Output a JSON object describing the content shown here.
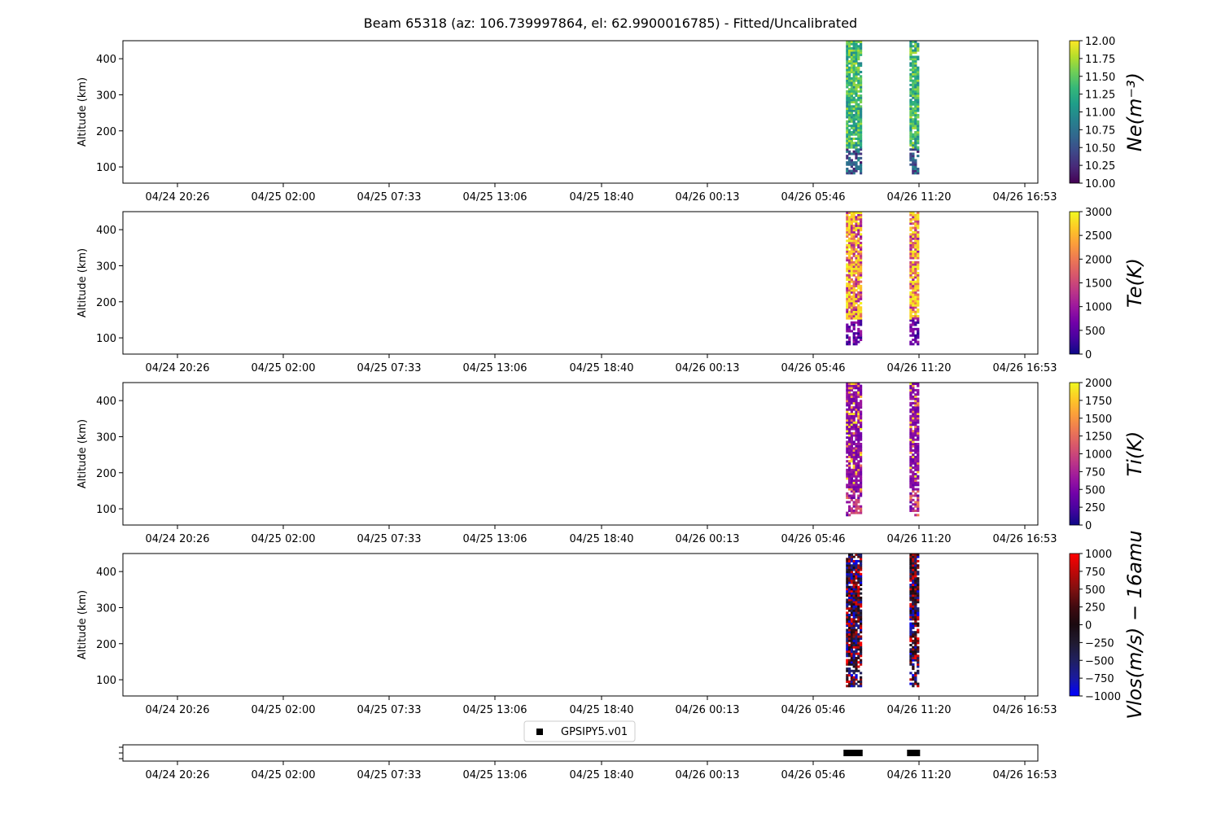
{
  "title": "Beam 65318 (az: 106.739997864, el: 62.9900016785) - Fitted/Uncalibrated",
  "x_tick_labels": [
    "04/24 20:26",
    "04/25 02:00",
    "04/25 07:33",
    "04/25 13:06",
    "04/25 18:40",
    "04/26 00:13",
    "04/26 05:46",
    "04/26 11:20",
    "04/26 16:53"
  ],
  "chart_data": [
    {
      "type": "heatmap",
      "ylabel": "Altitude (km)",
      "ylim": [
        55,
        450
      ],
      "y_ticks": [
        100,
        200,
        300,
        400
      ],
      "colorbar": {
        "label": "Ne(m⁻³)",
        "colormap": "viridis",
        "range": [
          10.0,
          12.0
        ],
        "ticks": [
          "10.00",
          "10.25",
          "10.50",
          "10.75",
          "11.00",
          "11.25",
          "11.50",
          "11.75",
          "12.00"
        ]
      },
      "data_blocks": [
        {
          "start": "04/26 07:30",
          "end": "04/26 08:20",
          "altitude_range": [
            80,
            450
          ]
        },
        {
          "start": "04/26 10:50",
          "end": "04/26 11:20",
          "altitude_range": [
            80,
            450
          ]
        }
      ]
    },
    {
      "type": "heatmap",
      "ylabel": "Altitude (km)",
      "ylim": [
        55,
        450
      ],
      "y_ticks": [
        100,
        200,
        300,
        400
      ],
      "colorbar": {
        "label": "Te(K)",
        "colormap": "plasma",
        "range": [
          0,
          3000
        ],
        "ticks": [
          "0",
          "500",
          "1000",
          "1500",
          "2000",
          "2500",
          "3000"
        ]
      },
      "data_blocks": [
        {
          "start": "04/26 07:30",
          "end": "04/26 08:20",
          "altitude_range": [
            80,
            450
          ]
        },
        {
          "start": "04/26 10:50",
          "end": "04/26 11:20",
          "altitude_range": [
            80,
            450
          ]
        }
      ]
    },
    {
      "type": "heatmap",
      "ylabel": "Altitude (km)",
      "ylim": [
        55,
        450
      ],
      "y_ticks": [
        100,
        200,
        300,
        400
      ],
      "colorbar": {
        "label": "Ti(K)",
        "colormap": "plasma",
        "range": [
          0,
          2000
        ],
        "ticks": [
          "0",
          "250",
          "500",
          "750",
          "1000",
          "1250",
          "1500",
          "1750",
          "2000"
        ]
      },
      "data_blocks": [
        {
          "start": "04/26 07:30",
          "end": "04/26 08:20",
          "altitude_range": [
            80,
            450
          ]
        },
        {
          "start": "04/26 10:50",
          "end": "04/26 11:20",
          "altitude_range": [
            80,
            450
          ]
        }
      ]
    },
    {
      "type": "heatmap",
      "ylabel": "Altitude (km)",
      "ylim": [
        55,
        450
      ],
      "y_ticks": [
        100,
        200,
        300,
        400
      ],
      "colorbar": {
        "label": "Vlos(m/s) − 16amu",
        "colormap": "blue-black-red",
        "range": [
          -1000,
          1000
        ],
        "ticks": [
          "−1000",
          "−750",
          "−500",
          "−250",
          "0",
          "250",
          "500",
          "750",
          "1000"
        ]
      },
      "data_blocks": [
        {
          "start": "04/26 07:30",
          "end": "04/26 08:20",
          "altitude_range": [
            80,
            450
          ]
        },
        {
          "start": "04/26 10:50",
          "end": "04/26 11:20",
          "altitude_range": [
            80,
            450
          ]
        }
      ]
    },
    {
      "type": "scatter",
      "legend": "GPSIPY5.v01",
      "legend_position": "top-center",
      "series": [
        {
          "name": "GPSIPY5.v01",
          "x_ranges": [
            [
              "04/26 07:30",
              "04/26 08:20"
            ],
            [
              "04/26 10:50",
              "04/26 11:20"
            ]
          ],
          "color": "#000000"
        }
      ]
    }
  ]
}
